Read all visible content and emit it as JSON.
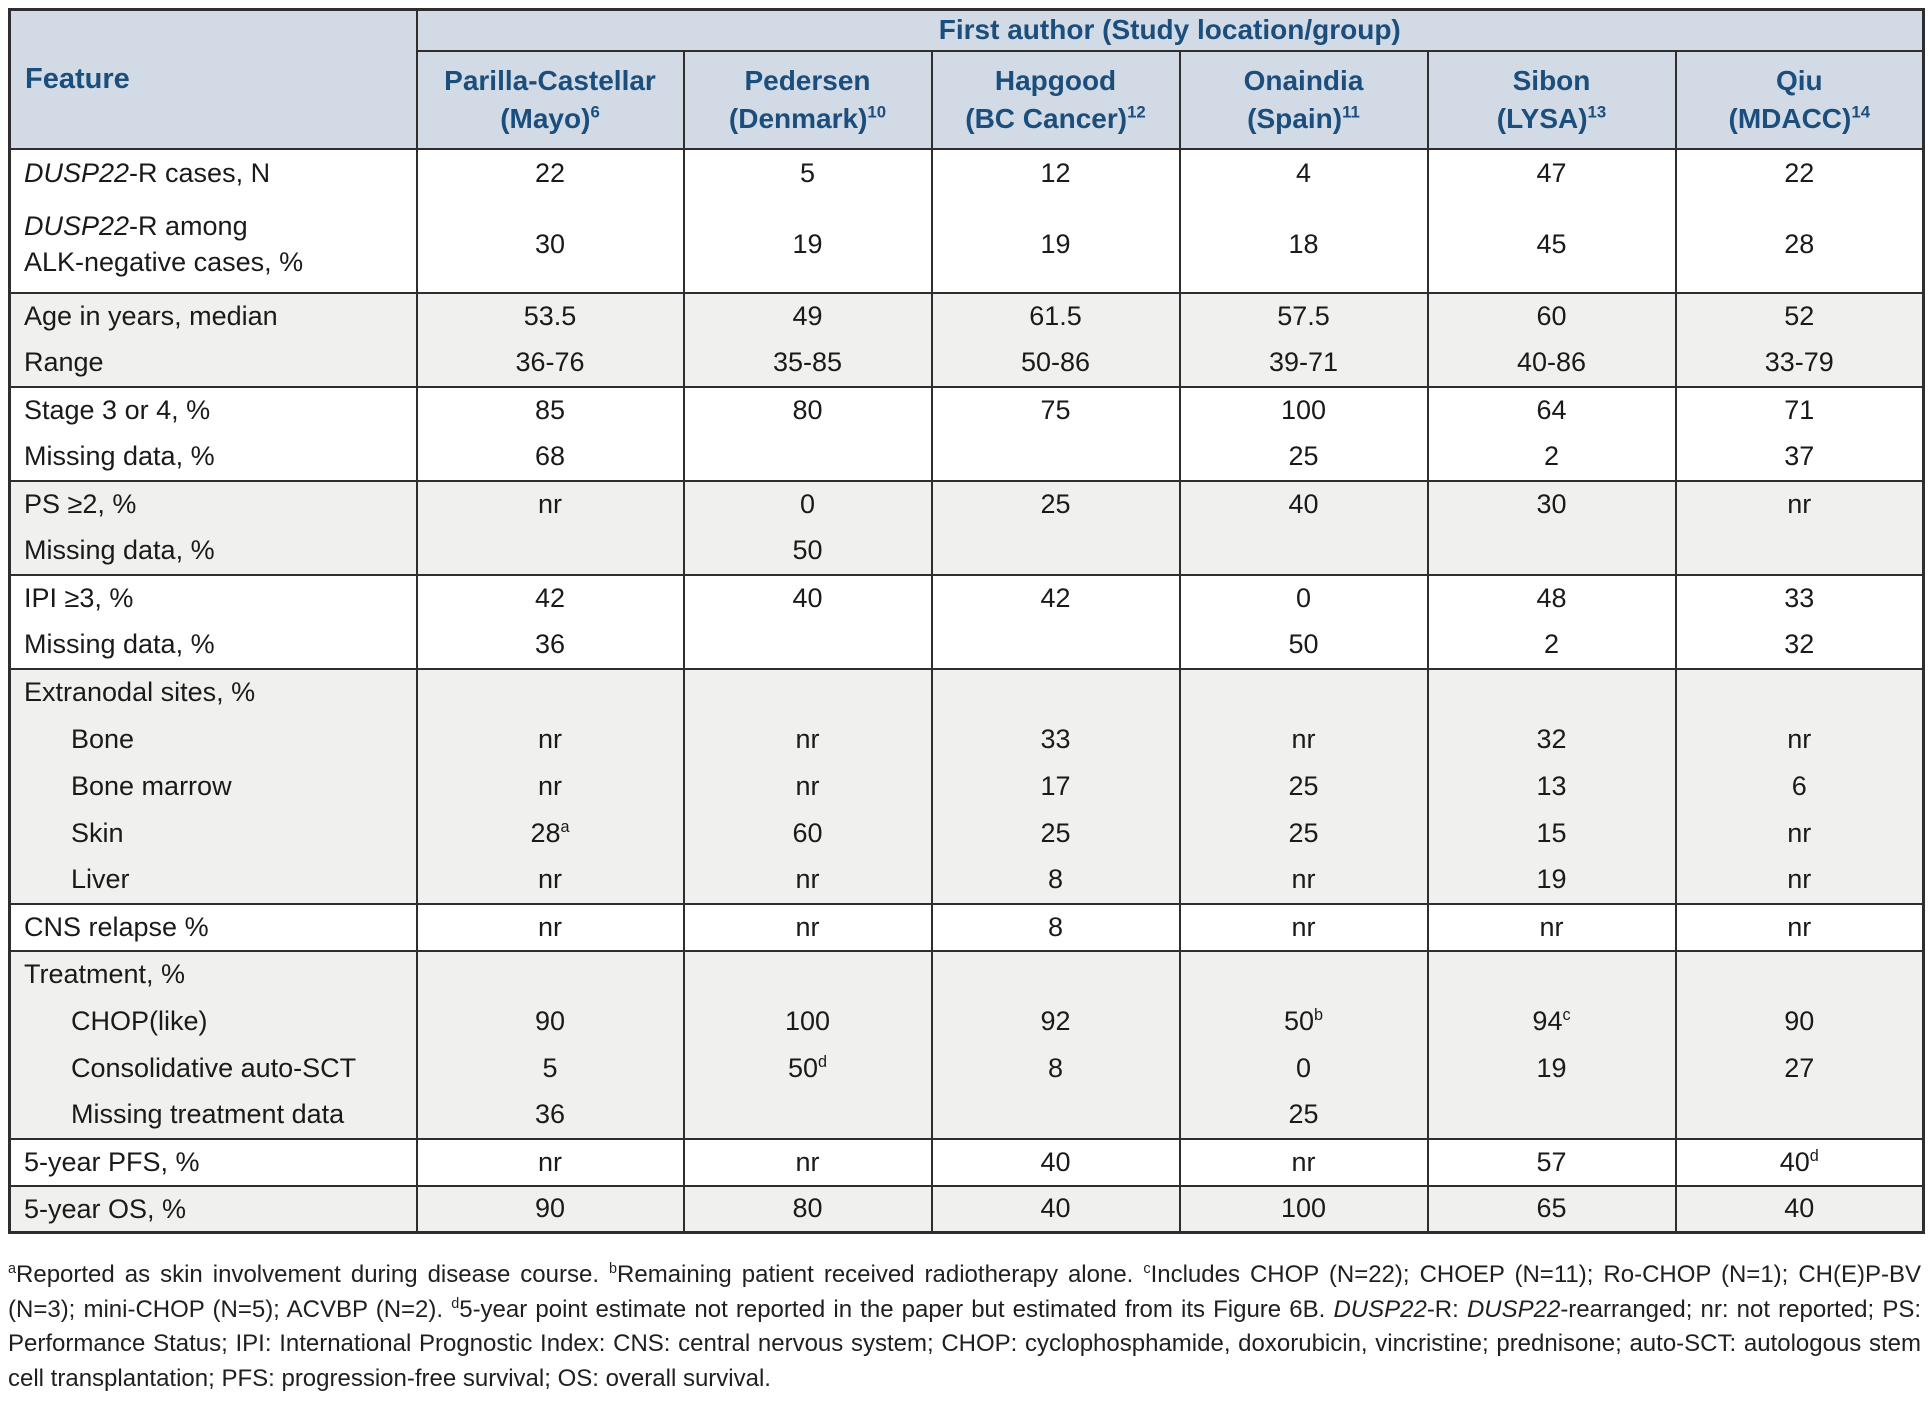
{
  "colors": {
    "header_bg": "#d2dbe5",
    "header_text": "#1b4e7d",
    "band_bg": "#f0f0ef",
    "border": "#2e2e2e",
    "text": "#1a1a1a"
  },
  "table": {
    "feature_header": "Feature",
    "group_header": "First author (Study location/group)",
    "columns": [
      {
        "name": "Parilla-Castellar",
        "location": "(Mayo)",
        "ref": "6"
      },
      {
        "name": "Pedersen",
        "location": "(Denmark)",
        "ref": "10"
      },
      {
        "name": "Hapgood",
        "location": "(BC Cancer)",
        "ref": "12"
      },
      {
        "name": "Onaindia",
        "location": "(Spain)",
        "ref": "11"
      },
      {
        "name": "Sibon",
        "location": "(LYSA)",
        "ref": "13"
      },
      {
        "name": "Qiu",
        "location": "(MDACC)",
        "ref": "14"
      }
    ],
    "groups": [
      {
        "shaded": false,
        "rows": [
          {
            "label_lines": [
              [
                {
                  "t": "DUSP22",
                  "italic": true
                },
                {
                  "t": "-R cases, N"
                }
              ]
            ],
            "values": [
              "22",
              "5",
              "12",
              "4",
              "47",
              "22"
            ]
          },
          {
            "label_lines": [
              [
                {
                  "t": "DUSP22",
                  "italic": true
                },
                {
                  "t": "-R among"
                }
              ],
              [
                {
                  "t": "ALK-negative cases, %"
                }
              ]
            ],
            "values": [
              "30",
              "19",
              "19",
              "18",
              "45",
              "28"
            ]
          }
        ]
      },
      {
        "shaded": true,
        "rows": [
          {
            "label_lines": [
              [
                {
                  "t": "Age in years, median"
                }
              ]
            ],
            "values": [
              "53.5",
              "49",
              "61.5",
              "57.5",
              "60",
              "52"
            ]
          },
          {
            "label_lines": [
              [
                {
                  "t": "Range"
                }
              ]
            ],
            "values": [
              "36-76",
              "35-85",
              "50-86",
              "39-71",
              "40-86",
              "33-79"
            ]
          }
        ]
      },
      {
        "shaded": false,
        "rows": [
          {
            "label_lines": [
              [
                {
                  "t": "Stage 3 or 4, %"
                }
              ]
            ],
            "values": [
              "85",
              "80",
              "75",
              "100",
              "64",
              "71"
            ]
          },
          {
            "label_lines": [
              [
                {
                  "t": "Missing data, %"
                }
              ]
            ],
            "values": [
              "68",
              "",
              "",
              "25",
              "2",
              "37"
            ]
          }
        ]
      },
      {
        "shaded": true,
        "rows": [
          {
            "label_lines": [
              [
                {
                  "t": "PS ≥2, %"
                }
              ]
            ],
            "values": [
              "nr",
              "0",
              "25",
              "40",
              "30",
              "nr"
            ]
          },
          {
            "label_lines": [
              [
                {
                  "t": "Missing data, %"
                }
              ]
            ],
            "values": [
              "",
              "50",
              "",
              "",
              "",
              ""
            ]
          }
        ]
      },
      {
        "shaded": false,
        "rows": [
          {
            "label_lines": [
              [
                {
                  "t": "IPI ≥3, %"
                }
              ]
            ],
            "values": [
              "42",
              "40",
              "42",
              "0",
              "48",
              "33"
            ]
          },
          {
            "label_lines": [
              [
                {
                  "t": "Missing data, %"
                }
              ]
            ],
            "values": [
              "36",
              "",
              "",
              "50",
              "2",
              "32"
            ]
          }
        ]
      },
      {
        "shaded": true,
        "rows": [
          {
            "label_lines": [
              [
                {
                  "t": "Extranodal sites, %"
                }
              ]
            ],
            "values": [
              "",
              "",
              "",
              "",
              "",
              ""
            ]
          },
          {
            "indent": true,
            "label_lines": [
              [
                {
                  "t": "Bone"
                }
              ]
            ],
            "values": [
              "nr",
              "nr",
              "33",
              "nr",
              "32",
              "nr"
            ]
          },
          {
            "indent": true,
            "label_lines": [
              [
                {
                  "t": "Bone marrow"
                }
              ]
            ],
            "values": [
              "nr",
              "nr",
              "17",
              "25",
              "13",
              "6"
            ]
          },
          {
            "indent": true,
            "label_lines": [
              [
                {
                  "t": "Skin"
                }
              ]
            ],
            "values": [
              {
                "v": "28",
                "sup": "a"
              },
              "60",
              "25",
              "25",
              "15",
              "nr"
            ]
          },
          {
            "indent": true,
            "label_lines": [
              [
                {
                  "t": "Liver"
                }
              ]
            ],
            "values": [
              "nr",
              "nr",
              "8",
              "nr",
              "19",
              "nr"
            ]
          }
        ]
      },
      {
        "shaded": false,
        "rows": [
          {
            "label_lines": [
              [
                {
                  "t": "CNS relapse %"
                }
              ]
            ],
            "values": [
              "nr",
              "nr",
              "8",
              "nr",
              "nr",
              "nr"
            ]
          }
        ]
      },
      {
        "shaded": true,
        "rows": [
          {
            "label_lines": [
              [
                {
                  "t": "Treatment, %"
                }
              ]
            ],
            "values": [
              "",
              "",
              "",
              "",
              "",
              ""
            ]
          },
          {
            "indent": true,
            "label_lines": [
              [
                {
                  "t": "CHOP(like)"
                }
              ]
            ],
            "values": [
              "90",
              "100",
              "92",
              {
                "v": "50",
                "sup": "b"
              },
              {
                "v": "94",
                "sup": "c"
              },
              "90"
            ]
          },
          {
            "indent": true,
            "label_lines": [
              [
                {
                  "t": "Consolidative auto-SCT"
                }
              ]
            ],
            "values": [
              "5",
              {
                "v": "50",
                "sup": "d"
              },
              "8",
              "0",
              "19",
              "27"
            ]
          },
          {
            "indent": true,
            "label_lines": [
              [
                {
                  "t": "Missing treatment data"
                }
              ]
            ],
            "values": [
              "36",
              "",
              "",
              "25",
              "",
              ""
            ]
          }
        ]
      },
      {
        "shaded": false,
        "rows": [
          {
            "label_lines": [
              [
                {
                  "t": "5-year PFS, %"
                }
              ]
            ],
            "values": [
              "nr",
              "nr",
              "40",
              "nr",
              "57",
              {
                "v": "40",
                "sup": "d"
              }
            ]
          }
        ]
      },
      {
        "shaded": true,
        "rows": [
          {
            "label_lines": [
              [
                {
                  "t": "5-year OS, %"
                }
              ]
            ],
            "values": [
              "90",
              "80",
              "40",
              "100",
              "65",
              "40"
            ]
          }
        ]
      }
    ]
  },
  "footnote": {
    "segments": [
      {
        "sup": "a"
      },
      {
        "t": "Reported as skin involvement during disease course. "
      },
      {
        "sup": "b"
      },
      {
        "t": "Remaining patient received radiotherapy alone. "
      },
      {
        "sup": "c"
      },
      {
        "t": "Includes CHOP (N=22); CHOEP (N=11); Ro-CHOP (N=1); CH(E)P-BV (N=3); mini-CHOP (N=5); ACVBP (N=2). "
      },
      {
        "sup": "d"
      },
      {
        "t": "5-year point estimate not reported in the paper but estimated from its Figure 6B. "
      },
      {
        "t": "DUSP22",
        "italic": true
      },
      {
        "t": "-R: "
      },
      {
        "t": "DUSP22",
        "italic": true
      },
      {
        "t": "-rearranged; nr: not reported; PS: Performance Status; IPI: International Prognostic Index: CNS: central nervous system; CHOP: cyclophosphamide, doxorubicin, vincristine; prednisone; auto-SCT: autologous stem cell transplantation; PFS: progression-free survival; OS: overall survival."
      }
    ]
  }
}
